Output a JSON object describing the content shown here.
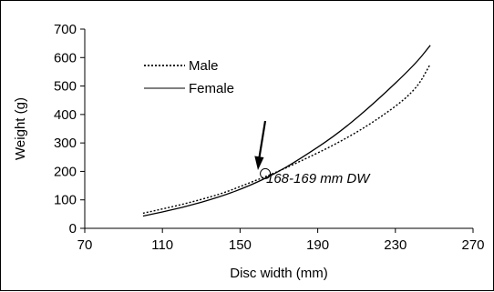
{
  "chart_data": {
    "type": "line",
    "title": "",
    "xlabel": "Disc width (mm)",
    "ylabel": "Weight (g)",
    "xlim": [
      70,
      270
    ],
    "ylim": [
      0,
      700
    ],
    "xticks": [
      70,
      110,
      150,
      190,
      230,
      270
    ],
    "yticks": [
      0,
      100,
      200,
      300,
      400,
      500,
      600,
      700
    ],
    "grid": false,
    "legend": "top-left",
    "series": [
      {
        "name": "Male",
        "style": "dotted",
        "x": [
          100,
          120,
          140,
          155,
          168,
          180,
          200,
          220,
          240,
          248
        ],
        "y": [
          53,
          83,
          120,
          160,
          195,
          232,
          298,
          378,
          480,
          577
        ]
      },
      {
        "name": "Female",
        "style": "solid",
        "x": [
          100,
          120,
          140,
          155,
          168,
          180,
          200,
          220,
          240,
          248
        ],
        "y": [
          43,
          72,
          111,
          150,
          192,
          240,
          330,
          445,
          575,
          643
        ]
      }
    ],
    "annotation": {
      "text": "168-169 mm DW",
      "x": 168.5,
      "y": 192
    }
  }
}
